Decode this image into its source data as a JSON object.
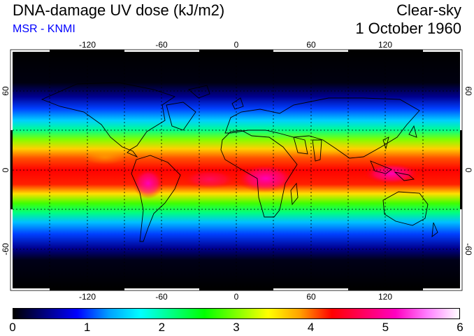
{
  "header": {
    "title": "DNA-damage UV dose (kJ/m2)",
    "credit": "MSR - KNMI",
    "sky_condition": "Clear-sky",
    "date": "1 October 1960"
  },
  "colors": {
    "credit_text": "#0000ff",
    "ramp": [
      "#000000",
      "#000080",
      "#0000ff",
      "#00a0ff",
      "#00ffff",
      "#00ff80",
      "#00ff00",
      "#80ff00",
      "#ffff00",
      "#ffa000",
      "#ff0000",
      "#ff0060",
      "#ff00c0",
      "#ff80ff",
      "#ffffff"
    ]
  },
  "map": {
    "longitude_ticks": [
      "-120",
      "-60",
      "0",
      "60",
      "120"
    ],
    "latitude_ticks": [
      "60",
      "0",
      "-60"
    ],
    "latitude_ticks_right": [
      "60",
      "0",
      "-60"
    ]
  },
  "colorbar": {
    "min": 0,
    "max": 6,
    "labels": [
      "0",
      "1",
      "2",
      "3",
      "4",
      "5",
      "6"
    ]
  }
}
